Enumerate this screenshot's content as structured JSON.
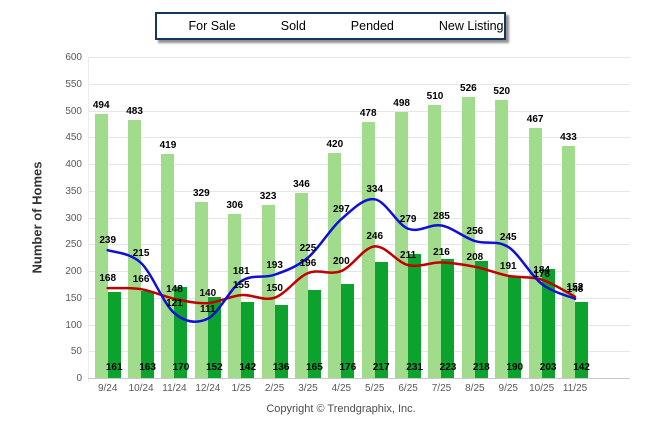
{
  "footer": {
    "copyright": "Copyright © Trendgraphix, Inc."
  },
  "chart_data": {
    "type": "bar+line",
    "title": "",
    "xlabel": "",
    "ylabel": "Number of Homes",
    "ylim": [
      0,
      600
    ],
    "yticks": [
      0,
      50,
      100,
      150,
      200,
      250,
      300,
      350,
      400,
      450,
      500,
      550,
      600
    ],
    "grid": true,
    "legend_position": "top",
    "categories": [
      "9/24",
      "10/24",
      "11/24",
      "12/24",
      "1/25",
      "2/25",
      "3/25",
      "4/25",
      "5/25",
      "6/25",
      "7/25",
      "8/25",
      "9/25",
      "10/25",
      "11/25"
    ],
    "series": [
      {
        "name": "For Sale",
        "type": "bar",
        "color": "#a1dc8d",
        "values": [
          494,
          483,
          419,
          329,
          306,
          323,
          346,
          420,
          478,
          498,
          510,
          526,
          520,
          467,
          433
        ]
      },
      {
        "name": "Sold",
        "type": "bar",
        "color": "#0ba32d",
        "values": [
          161,
          163,
          170,
          152,
          142,
          136,
          165,
          176,
          217,
          231,
          223,
          218,
          190,
          203,
          142
        ]
      },
      {
        "name": "Pended",
        "type": "line",
        "color": "#c00000",
        "values": [
          168,
          166,
          148,
          140,
          155,
          150,
          196,
          200,
          246,
          211,
          216,
          208,
          191,
          184,
          152
        ]
      },
      {
        "name": "New Listing",
        "type": "line",
        "color": "#0f0fd8",
        "values": [
          239,
          215,
          121,
          111,
          181,
          193,
          225,
          297,
          334,
          279,
          285,
          256,
          245,
          176,
          148
        ]
      }
    ]
  }
}
